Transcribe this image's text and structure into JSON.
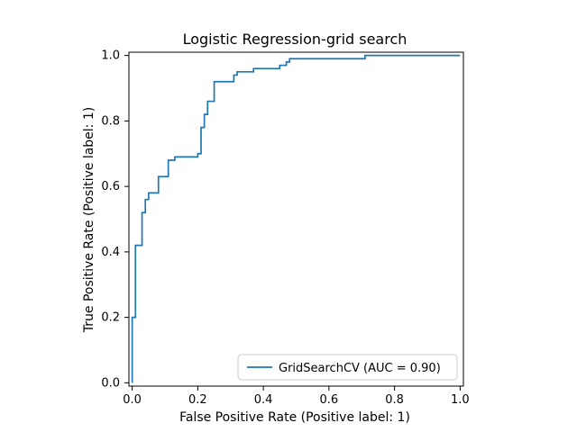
{
  "chart_data": {
    "type": "line",
    "title": "Logistic Regression-grid search",
    "xlabel": "False Positive Rate (Positive label: 1)",
    "ylabel": "True Positive Rate (Positive label: 1)",
    "xlim": [
      -0.01,
      1.01
    ],
    "ylim": [
      -0.01,
      1.01
    ],
    "x_ticks": [
      0.0,
      0.2,
      0.4,
      0.6,
      0.8,
      1.0
    ],
    "y_ticks": [
      0.0,
      0.2,
      0.4,
      0.6,
      0.8,
      1.0
    ],
    "x_tick_labels": [
      "0.0",
      "0.2",
      "0.4",
      "0.6",
      "0.8",
      "1.0"
    ],
    "y_tick_labels": [
      "0.0",
      "0.2",
      "0.4",
      "0.6",
      "0.8",
      "1.0"
    ],
    "grid": false,
    "legend_position": "bottom-right",
    "series": [
      {
        "name": "GridSearchCV (AUC = 0.90)",
        "color": "#1f77b4",
        "x": [
          0.0,
          0.0,
          0.0,
          0.01,
          0.01,
          0.03,
          0.03,
          0.04,
          0.04,
          0.05,
          0.05,
          0.08,
          0.08,
          0.11,
          0.11,
          0.13,
          0.13,
          0.2,
          0.2,
          0.21,
          0.21,
          0.22,
          0.22,
          0.23,
          0.23,
          0.25,
          0.25,
          0.31,
          0.31,
          0.32,
          0.32,
          0.37,
          0.37,
          0.45,
          0.45,
          0.47,
          0.47,
          0.48,
          0.48,
          0.71,
          0.71,
          1.0
        ],
        "y": [
          0.0,
          0.0,
          0.2,
          0.2,
          0.42,
          0.42,
          0.52,
          0.52,
          0.56,
          0.56,
          0.58,
          0.58,
          0.63,
          0.63,
          0.68,
          0.68,
          0.69,
          0.69,
          0.7,
          0.7,
          0.78,
          0.78,
          0.82,
          0.82,
          0.86,
          0.86,
          0.92,
          0.92,
          0.94,
          0.94,
          0.95,
          0.95,
          0.96,
          0.96,
          0.97,
          0.97,
          0.98,
          0.98,
          0.99,
          0.99,
          1.0,
          1.0
        ]
      }
    ]
  }
}
